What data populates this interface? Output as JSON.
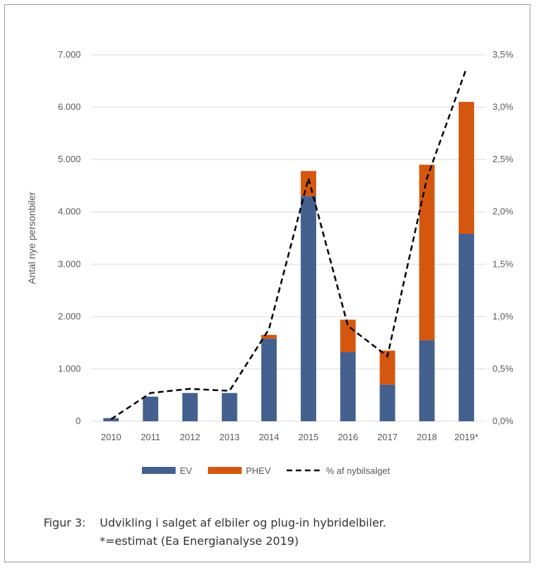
{
  "chart_data": {
    "type": "bar",
    "stacked": true,
    "categories": [
      "2010",
      "2011",
      "2012",
      "2013",
      "2014",
      "2015",
      "2016",
      "2017",
      "2018",
      "2019*"
    ],
    "series": [
      {
        "name": "EV",
        "values": [
          60,
          470,
          540,
          540,
          1580,
          4300,
          1320,
          700,
          1550,
          3580
        ],
        "color": "#44608f"
      },
      {
        "name": "PHEV",
        "values": [
          0,
          0,
          0,
          0,
          70,
          480,
          620,
          650,
          3350,
          2520
        ],
        "color": "#d5570f"
      }
    ],
    "line_series": {
      "name": "% af nybilsalget",
      "axis": "right",
      "style": "dashed",
      "color": "#000000",
      "values": [
        0.02,
        0.27,
        0.31,
        0.29,
        0.88,
        2.32,
        0.91,
        0.62,
        2.32,
        3.37
      ]
    },
    "ylabel": "Antal nye personbiler",
    "ylim": [
      0,
      7000
    ],
    "y_ticks": [
      0,
      1000,
      2000,
      3000,
      4000,
      5000,
      6000,
      7000
    ],
    "y_tick_labels": [
      "0",
      "1.000",
      "2.000",
      "3.000",
      "4.000",
      "5.000",
      "6.000",
      "7.000"
    ],
    "y2lim": [
      0,
      3.5
    ],
    "y2_ticks": [
      0,
      0.5,
      1.0,
      1.5,
      2.0,
      2.5,
      3.0,
      3.5
    ],
    "y2_tick_labels": [
      "0,0%",
      "0,5%",
      "1,0%",
      "1,5%",
      "2,0%",
      "2,5%",
      "3,0%",
      "3,5%"
    ],
    "grid": true,
    "legend_position": "bottom"
  },
  "caption": {
    "label": "Figur 3:",
    "line1": "Udvikling i salget af elbiler og plug-in hybridelbiler.",
    "line2": "*=estimat (Ea Energianalyse 2019)"
  }
}
